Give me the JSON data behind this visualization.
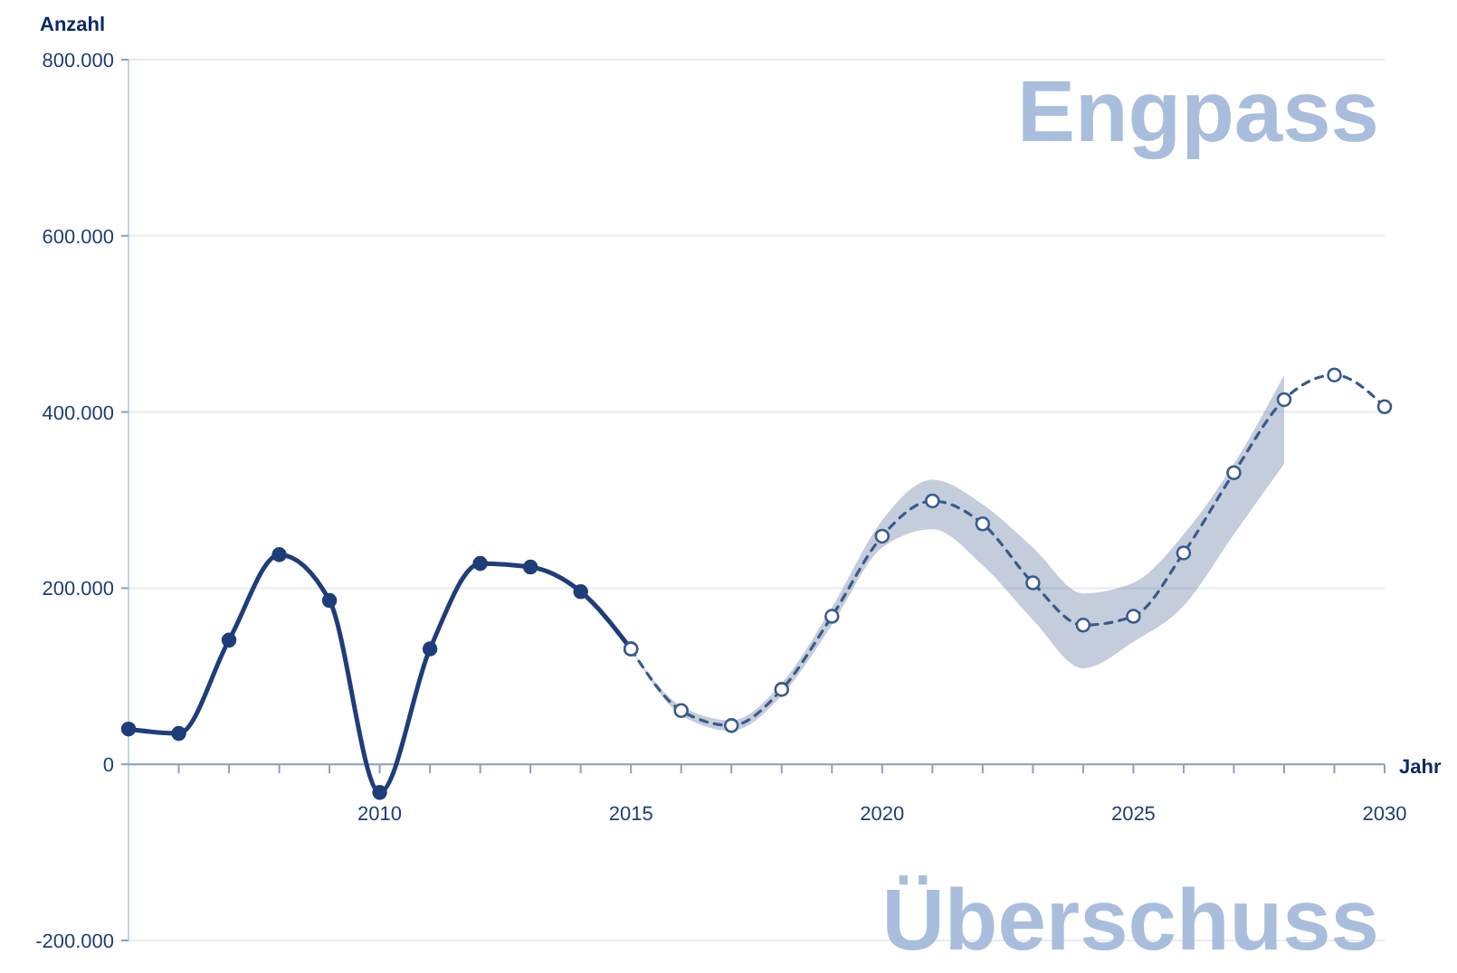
{
  "chart_data": {
    "type": "line",
    "ylabel": "Anzahl",
    "xlabel": "Jahr",
    "annotations": [
      "Engpass",
      "Überschuss"
    ],
    "xlim": [
      2005,
      2030
    ],
    "xticks": [
      {
        "value": 2006,
        "label": null
      },
      {
        "value": 2007,
        "label": null
      },
      {
        "value": 2008,
        "label": null
      },
      {
        "value": 2009,
        "label": null
      },
      {
        "value": 2010,
        "label": "2010"
      },
      {
        "value": 2011,
        "label": null
      },
      {
        "value": 2012,
        "label": null
      },
      {
        "value": 2013,
        "label": null
      },
      {
        "value": 2014,
        "label": null
      },
      {
        "value": 2015,
        "label": "2015"
      },
      {
        "value": 2016,
        "label": null
      },
      {
        "value": 2017,
        "label": null
      },
      {
        "value": 2018,
        "label": null
      },
      {
        "value": 2019,
        "label": null
      },
      {
        "value": 2020,
        "label": "2020"
      },
      {
        "value": 2021,
        "label": null
      },
      {
        "value": 2022,
        "label": null
      },
      {
        "value": 2023,
        "label": null
      },
      {
        "value": 2024,
        "label": null
      },
      {
        "value": 2025,
        "label": "2025"
      },
      {
        "value": 2026,
        "label": null
      },
      {
        "value": 2027,
        "label": null
      },
      {
        "value": 2028,
        "label": null
      },
      {
        "value": 2029,
        "label": null
      },
      {
        "value": 2030,
        "label": "2030"
      }
    ],
    "ylim": [
      -200000,
      800000
    ],
    "yticks": [
      {
        "value": -200000,
        "label": "-200.000"
      },
      {
        "value": 0,
        "label": "0"
      },
      {
        "value": 200000,
        "label": "200.000"
      },
      {
        "value": 400000,
        "label": "400.000"
      },
      {
        "value": 600000,
        "label": "600.000"
      },
      {
        "value": 800000,
        "label": "800.000"
      }
    ],
    "grid": "y",
    "series": [
      {
        "color": "#1f3d7a",
        "marker": "circle",
        "line_style": "solid",
        "x": [
          2005,
          2006,
          2007,
          2008,
          2009,
          2010,
          2011,
          2012,
          2013,
          2014,
          2015
        ],
        "values": [
          40000,
          35000,
          141000,
          238000,
          186000,
          -32000,
          131000,
          228000,
          224000,
          196000,
          131000
        ]
      },
      {
        "color": "#3a5a8c",
        "marker": "circle",
        "line_style": "dashed",
        "x": [
          2015,
          2016,
          2017,
          2018,
          2019,
          2020,
          2021,
          2022,
          2023,
          2024,
          2025,
          2026,
          2027,
          2028,
          2029,
          2030
        ],
        "values": [
          131000,
          61000,
          44000,
          85000,
          168000,
          259000,
          299000,
          273000,
          206000,
          158000,
          168000,
          240000,
          331000,
          414000,
          442000,
          406000
        ],
        "lower": [
          131000,
          56000,
          38000,
          78000,
          158000,
          246000,
          267000,
          226000,
          164000,
          109000,
          139000,
          180000,
          261000,
          341000,
          null,
          null
        ],
        "upper": [
          131000,
          66000,
          50000,
          92000,
          178000,
          277000,
          323000,
          295000,
          246000,
          194000,
          206000,
          261000,
          341000,
          442000,
          null,
          null
        ]
      }
    ]
  }
}
